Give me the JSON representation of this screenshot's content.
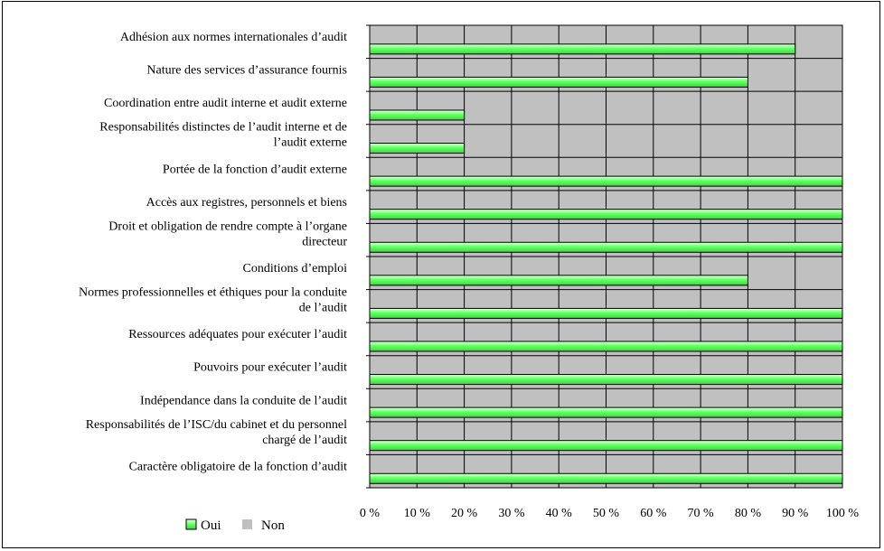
{
  "chart_data": {
    "type": "bar",
    "orientation": "horizontal",
    "categories": [
      "Adhésion aux normes internationales d’audit",
      "Nature des services d’assurance fournis",
      "Coordination entre audit interne et audit externe",
      "Responsabilités distinctes de l’audit interne et de l’audit externe",
      "Portée de la fonction d’audit externe",
      "Accès aux registres, personnels et biens",
      "Droit et obligation de rendre compte à l’organe directeur",
      "Conditions d’emploi",
      "Normes professionnelles et éthiques pour la conduite de l’audit",
      "Ressources adéquates pour exécuter l’audit",
      "Pouvoirs pour exécuter l’audit",
      "Indépendance dans la conduite de l’audit",
      "Responsabilités de l’ISC/du cabinet et du personnel chargé de l’audit",
      "Caractère obligatoire de la fonction d’audit"
    ],
    "category_label_lines": [
      [
        "Adhésion aux normes internationales d’audit"
      ],
      [
        "Nature des services d’assurance fournis"
      ],
      [
        "Coordination entre audit interne et audit externe"
      ],
      [
        "Responsabilités distinctes de l’audit interne et de",
        "l’audit externe"
      ],
      [
        "Portée de la fonction d’audit externe"
      ],
      [
        "Accès aux registres, personnels et biens"
      ],
      [
        "Droit et obligation de rendre compte à l’organe",
        "directeur"
      ],
      [
        "Conditions d’emploi"
      ],
      [
        "Normes professionnelles et éthiques pour la conduite",
        "de l’audit"
      ],
      [
        "Ressources adéquates pour exécuter l’audit"
      ],
      [
        "Pouvoirs pour exécuter l’audit"
      ],
      [
        "Indépendance dans la conduite de l’audit"
      ],
      [
        "Responsabilités de l’ISC/du cabinet et du personnel",
        "chargé de l’audit"
      ],
      [
        "Caractère obligatoire de la fonction d’audit"
      ]
    ],
    "series": [
      {
        "name": "Oui",
        "values": [
          90,
          80,
          20,
          20,
          100,
          100,
          100,
          80,
          100,
          100,
          100,
          100,
          100,
          100
        ]
      },
      {
        "name": "Non",
        "values": [
          10,
          20,
          80,
          80,
          0,
          0,
          0,
          20,
          0,
          0,
          0,
          0,
          0,
          0
        ]
      }
    ],
    "xlim": [
      0,
      100
    ],
    "xticks": [
      "0 %",
      "10 %",
      "20 %",
      "30 %",
      "40 %",
      "50 %",
      "60 %",
      "70 %",
      "80 %",
      "90 %",
      "100 %"
    ],
    "grid": true,
    "legend_position": "bottom-left",
    "colors": {
      "oui": "#66ff66",
      "non": "#c0c0c0",
      "border": "#000000"
    }
  }
}
